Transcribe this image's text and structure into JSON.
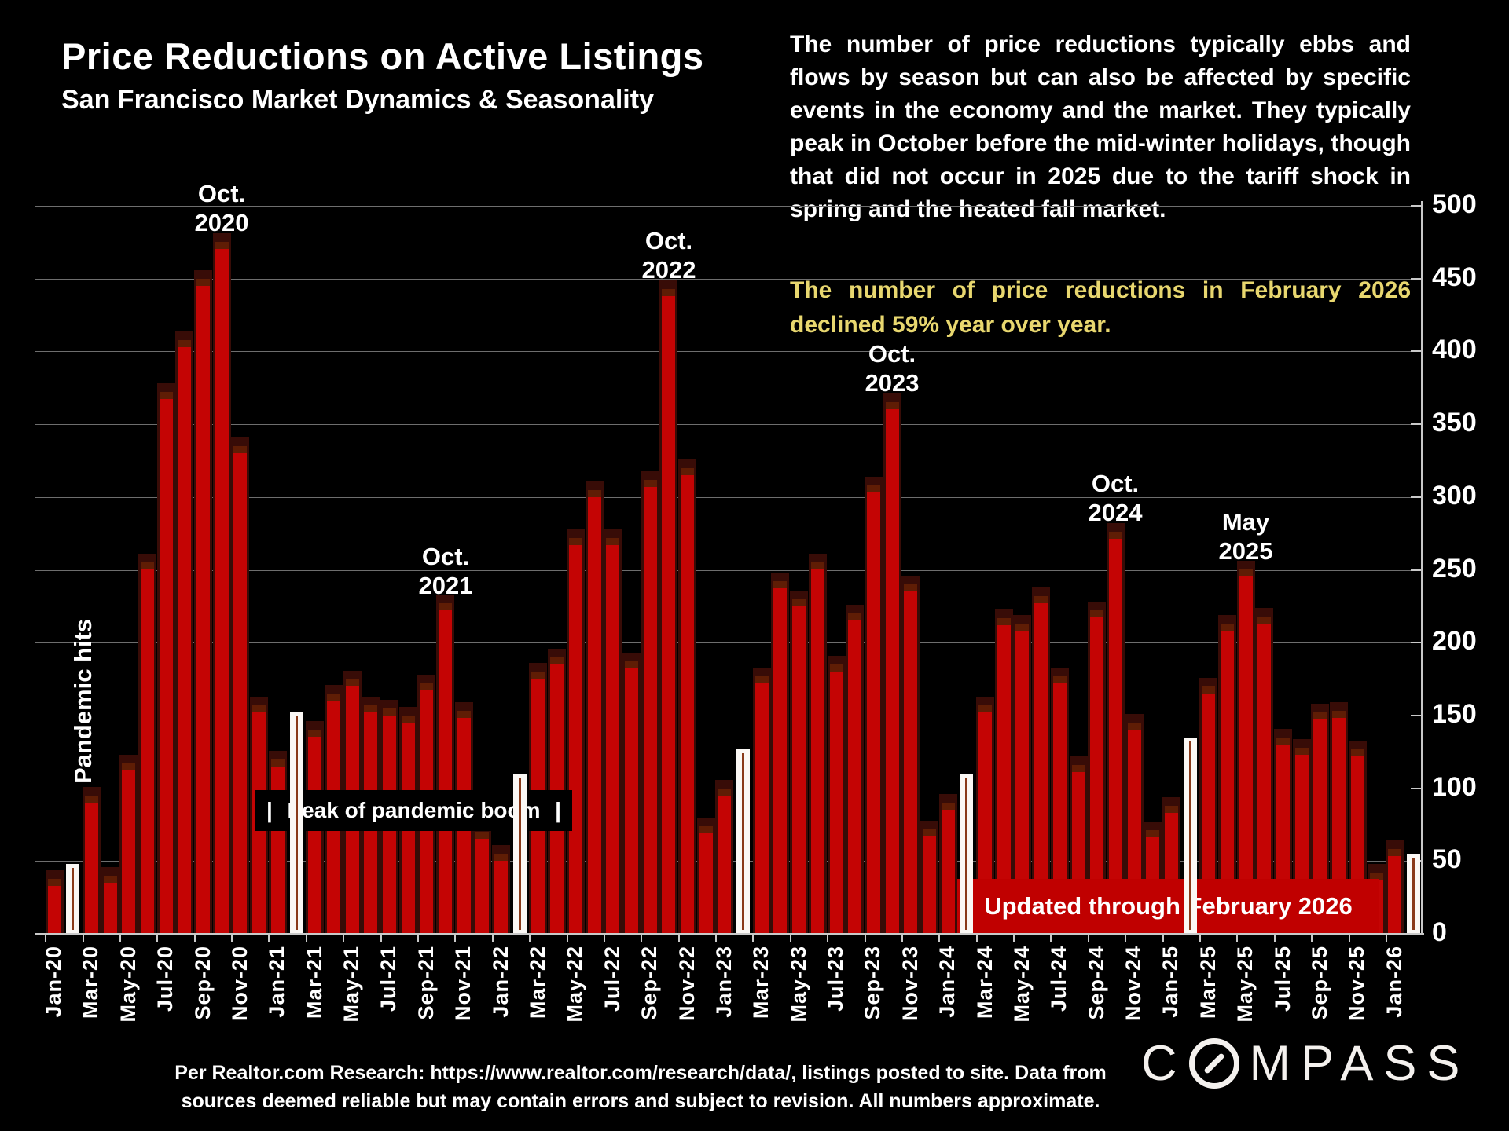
{
  "title": "Price Reductions on Active Listings",
  "subtitle": "San Francisco Market Dynamics & Seasonality",
  "intro_paragraph": "The number of price reductions typically ebbs and flows by season but can also be affected by specific events in the economy and the market. They typically peak in October before the mid-winter holidays, though that did not occur in 2025 due to the tariff shock in spring and the heated fall market.",
  "highlight_paragraph": "The number of price reductions in February 2026 declined 59% year over year.",
  "annotations": {
    "pandemic_hits": "Pandemic hits",
    "oct_2020": {
      "line1": "Oct.",
      "line2": "2020"
    },
    "oct_2021": {
      "line1": "Oct.",
      "line2": "2021"
    },
    "oct_2022": {
      "line1": "Oct.",
      "line2": "2022"
    },
    "oct_2023": {
      "line1": "Oct.",
      "line2": "2023"
    },
    "oct_2024": {
      "line1": "Oct.",
      "line2": "2024"
    },
    "may_2025": {
      "line1": "May",
      "line2": "2025"
    },
    "peak_pipe_left": "|",
    "peak_label": "Peak of pandemic boom",
    "peak_pipe_right": "|",
    "updated_banner": "Updated through February 2026"
  },
  "footer": {
    "line1": "Per Realtor.com Research:  https://www.realtor.com/research/data/, listings posted to site. Data from",
    "line2": "sources deemed reliable but may contain errors and subject to revision. All numbers approximate."
  },
  "logo": {
    "prefix": "C",
    "suffix": "MPASS"
  },
  "colors": {
    "background": "#000000",
    "bar": "#c40404",
    "bar_cap": "#5f1d05",
    "bar_shadow": "#380c07",
    "highlight_bar": "#fbf8f5",
    "highlight_text": "#e8d76f",
    "banner": "#c00000",
    "gridline": "#6e6e6e"
  },
  "chart_data": {
    "type": "bar",
    "title": "Price Reductions on Active Listings",
    "xlabel": "",
    "ylabel": "",
    "ylim": [
      0,
      500
    ],
    "grid": true,
    "axis_side": "right",
    "x": [
      "Jan-20",
      "Feb-20",
      "Mar-20",
      "Apr-20",
      "May-20",
      "Jun-20",
      "Jul-20",
      "Aug-20",
      "Sep-20",
      "Oct-20",
      "Nov-20",
      "Dec-20",
      "Jan-21",
      "Feb-21",
      "Mar-21",
      "Apr-21",
      "May-21",
      "Jun-21",
      "Jul-21",
      "Aug-21",
      "Sep-21",
      "Oct-21",
      "Nov-21",
      "Dec-21",
      "Jan-22",
      "Feb-22",
      "Mar-22",
      "Apr-22",
      "May-22",
      "Jun-22",
      "Jul-22",
      "Aug-22",
      "Sep-22",
      "Oct-22",
      "Nov-22",
      "Dec-22",
      "Jan-23",
      "Feb-23",
      "Mar-23",
      "Apr-23",
      "May-23",
      "Jun-23",
      "Jul-23",
      "Aug-23",
      "Sep-23",
      "Oct-23",
      "Nov-23",
      "Dec-23",
      "Jan-24",
      "Feb-24",
      "Mar-24",
      "Apr-24",
      "May-24",
      "Jun-24",
      "Jul-24",
      "Aug-24",
      "Sep-24",
      "Oct-24",
      "Nov-24",
      "Dec-24",
      "Jan-25",
      "Feb-25",
      "Mar-25",
      "Apr-25",
      "May-25",
      "Jun-25",
      "Jul-25",
      "Aug-25",
      "Sep-25",
      "Oct-25",
      "Nov-25",
      "Dec-25",
      "Jan-26",
      "Feb-26"
    ],
    "values": [
      38,
      48,
      95,
      40,
      117,
      255,
      372,
      408,
      450,
      475,
      335,
      157,
      120,
      152,
      140,
      165,
      175,
      157,
      155,
      150,
      172,
      227,
      153,
      70,
      55,
      110,
      180,
      190,
      272,
      305,
      272,
      187,
      312,
      443,
      320,
      74,
      100,
      127,
      177,
      242,
      230,
      255,
      185,
      220,
      308,
      365,
      240,
      72,
      90,
      110,
      157,
      217,
      213,
      232,
      177,
      116,
      222,
      276,
      145,
      71,
      88,
      135,
      170,
      213,
      250,
      218,
      135,
      128,
      152,
      153,
      127,
      42,
      58,
      55
    ],
    "february_white_indices": [
      1,
      13,
      25,
      37,
      49,
      61,
      73
    ],
    "x_tick_labels": [
      "Jan-20",
      "Mar-20",
      "May-20",
      "Jul-20",
      "Sep-20",
      "Nov-20",
      "Jan-21",
      "Mar-21",
      "May-21",
      "Jul-21",
      "Sep-21",
      "Nov-21",
      "Jan-22",
      "Mar-22",
      "May-22",
      "Jul-22",
      "Sep-22",
      "Nov-22",
      "Jan-23",
      "Mar-23",
      "May-23",
      "Jul-23",
      "Sep-23",
      "Nov-23",
      "Jan-24",
      "Mar-24",
      "May-24",
      "Jul-24",
      "Sep-24",
      "Nov-24",
      "Jan-25",
      "Mar-25",
      "May-25",
      "Jul-25",
      "Sep-25",
      "Nov-25",
      "Jan-26"
    ],
    "y_ticks": [
      0,
      50,
      100,
      150,
      200,
      250,
      300,
      350,
      400,
      450,
      500
    ]
  }
}
